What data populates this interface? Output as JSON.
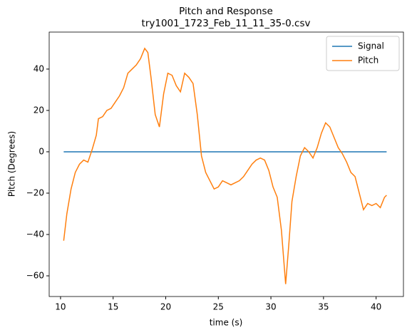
{
  "chart_data": {
    "type": "line",
    "title": "Pitch and Response",
    "subtitle": "try1001_1723_Feb_11_11_35-0.csv",
    "x_label": "time (s)",
    "y_label": "Pitch (Degrees)",
    "x": [
      10.3,
      10.6,
      11.0,
      11.4,
      11.8,
      12.2,
      12.6,
      13.0,
      13.4,
      13.6,
      14.0,
      14.4,
      14.8,
      15.2,
      15.6,
      16.0,
      16.4,
      16.8,
      17.2,
      17.6,
      18.0,
      18.3,
      18.6,
      19.0,
      19.4,
      19.8,
      20.2,
      20.6,
      21.0,
      21.4,
      21.8,
      22.2,
      22.6,
      23.0,
      23.4,
      23.8,
      24.2,
      24.6,
      25.0,
      25.4,
      25.8,
      26.2,
      26.6,
      27.0,
      27.4,
      27.8,
      28.2,
      28.6,
      29.0,
      29.4,
      29.8,
      30.2,
      30.6,
      31.0,
      31.4,
      31.7,
      32.0,
      32.4,
      32.8,
      33.2,
      33.6,
      34.0,
      34.4,
      34.8,
      35.2,
      35.6,
      36.0,
      36.4,
      36.8,
      37.2,
      37.6,
      38.0,
      38.4,
      38.8,
      39.2,
      39.6,
      40.0,
      40.4,
      40.8,
      41.0
    ],
    "series": [
      {
        "name": "Signal",
        "color": "#1f77b4",
        "values": [
          0,
          0,
          0,
          0,
          0,
          0,
          0,
          0,
          0,
          0,
          0,
          0,
          0,
          0,
          0,
          0,
          0,
          0,
          0,
          0,
          0,
          0,
          0,
          0,
          0,
          0,
          0,
          0,
          0,
          0,
          0,
          0,
          0,
          0,
          0,
          0,
          0,
          0,
          0,
          0,
          0,
          0,
          0,
          0,
          0,
          0,
          0,
          0,
          0,
          0,
          0,
          0,
          0,
          0,
          0,
          0,
          0,
          0,
          0,
          0,
          0,
          0,
          0,
          0,
          0,
          0,
          0,
          0,
          0,
          0,
          0,
          0,
          0,
          0,
          0,
          0,
          0,
          0,
          0,
          0
        ]
      },
      {
        "name": "Pitch",
        "color": "#ff7f0e",
        "values": [
          -43,
          -30,
          -18,
          -10,
          -6,
          -4,
          -5,
          1,
          8,
          16,
          17,
          20,
          21,
          24,
          27,
          31,
          38,
          40,
          42,
          45,
          50,
          48,
          36,
          18,
          12,
          28,
          38,
          37,
          32,
          29,
          38,
          36,
          33,
          18,
          -2,
          -10,
          -14,
          -18,
          -17,
          -14,
          -15,
          -16,
          -15,
          -14,
          -12,
          -9,
          -6,
          -4,
          -3,
          -4,
          -9,
          -17,
          -22,
          -38,
          -64,
          -45,
          -24,
          -12,
          -2,
          2,
          0,
          -3,
          2,
          9,
          14,
          12,
          7,
          2,
          -1,
          -5,
          -10,
          -12,
          -20,
          -28,
          -25,
          -26,
          -25,
          -27,
          -22,
          -21
        ]
      }
    ],
    "xlim": [
      8.92,
      42.6
    ],
    "ylim": [
      -70,
      57.9
    ],
    "xticks": [
      10,
      15,
      20,
      25,
      30,
      35,
      40
    ],
    "yticks": [
      {
        "value": -60,
        "label": "−60"
      },
      {
        "value": -40,
        "label": "−40"
      },
      {
        "value": -20,
        "label": "−20"
      },
      0,
      20,
      40
    ],
    "legend": "upper right",
    "grid": false
  }
}
